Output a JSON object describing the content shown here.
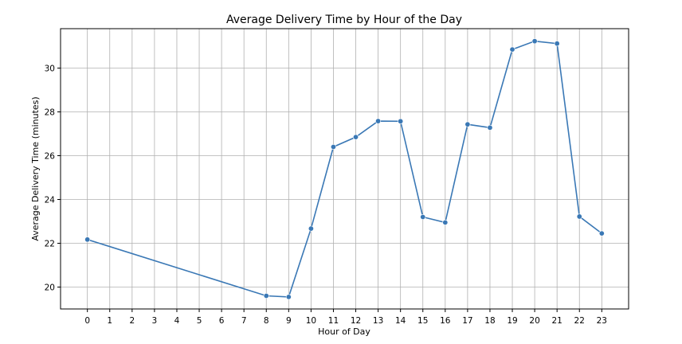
{
  "chart_data": {
    "type": "line",
    "title": "Average Delivery Time by Hour of the Day",
    "xlabel": "Hour of Day",
    "ylabel": "Average Delivery Time (minutes)",
    "xlim": [
      -1.2,
      24.2
    ],
    "ylim": [
      19.0,
      31.8
    ],
    "x_ticks": [
      0,
      1,
      2,
      3,
      4,
      5,
      6,
      7,
      8,
      9,
      10,
      11,
      12,
      13,
      14,
      15,
      16,
      17,
      18,
      19,
      20,
      21,
      22,
      23
    ],
    "y_ticks": [
      20,
      22,
      24,
      26,
      28,
      30
    ],
    "grid": true,
    "color": "#3a78b5",
    "series": [
      {
        "x": [
          0,
          8,
          9,
          10,
          11,
          12,
          13,
          14,
          15,
          16,
          17,
          18,
          19,
          20,
          21,
          22,
          23
        ],
        "values": [
          22.17,
          19.6,
          19.55,
          22.67,
          26.4,
          26.85,
          27.58,
          27.57,
          23.2,
          22.95,
          27.43,
          27.28,
          30.85,
          31.23,
          31.12,
          23.22,
          22.45
        ]
      }
    ]
  }
}
